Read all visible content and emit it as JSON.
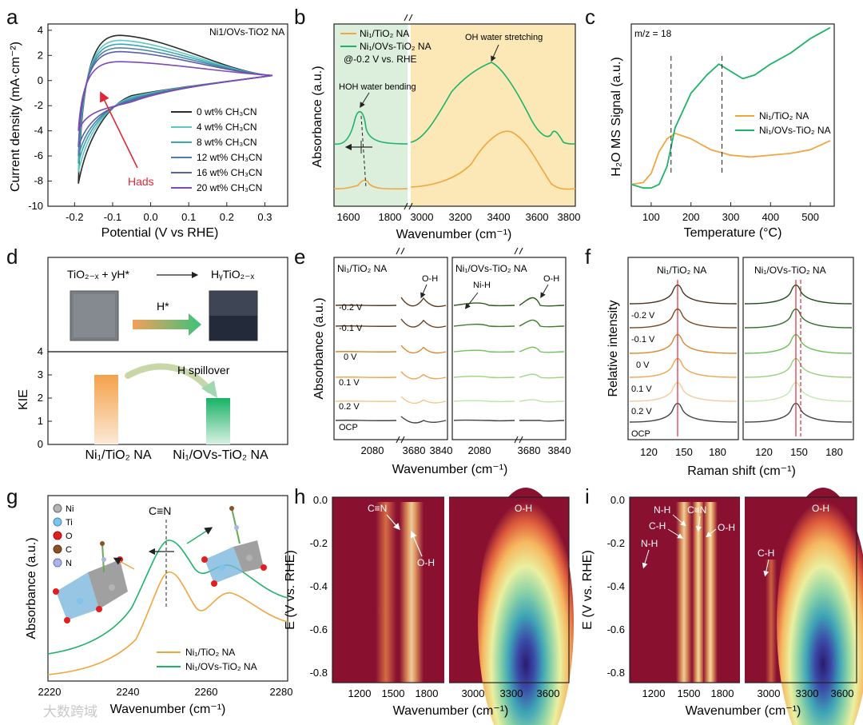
{
  "figure": {
    "panel_letters": [
      "a",
      "b",
      "c",
      "d",
      "e",
      "f",
      "g",
      "h",
      "i"
    ],
    "watermark": "大数跨域"
  },
  "colors": {
    "black": "#222222",
    "orange": "#f2a640",
    "green": "#1db36a",
    "red": "#e0283b",
    "cv": [
      "#2b2b2b",
      "#5fc9bf",
      "#3aa6b4",
      "#4b7fa8",
      "#5a5fa8",
      "#7e48b8"
    ],
    "e_left": [
      "#5a3a1e",
      "#6a4220",
      "#d7882c",
      "#f0a650",
      "#f6c58a",
      "#444444"
    ],
    "e_right": [
      "#2e5e22",
      "#3f7f2a",
      "#6fc25a",
      "#9ad67f",
      "#bde5a8",
      "#444444"
    ],
    "f_left": [
      "#4a3422",
      "#7a4a22",
      "#d9892c",
      "#f0a650",
      "#f8c99b",
      "#444444"
    ],
    "f_right": [
      "#1e4e1e",
      "#2f6f2a",
      "#6cc057",
      "#98d07c",
      "#c5e8b3",
      "#444444"
    ]
  },
  "chart_data": [
    {
      "panel": "a",
      "type": "line",
      "title": "Ni1/OVs-TiO2 NA",
      "xlabel": "Potential (V vs RHE)",
      "ylabel": "Current density (mA·cm⁻²)",
      "xlim": [
        -0.27,
        0.36
      ],
      "ylim": [
        -10,
        4.5
      ],
      "xticks": [
        "-0.2",
        "-0.1",
        "0.0",
        "0.1",
        "0.2",
        "0.3"
      ],
      "yticks": [
        "4",
        "2",
        "0",
        "-2",
        "-4",
        "-6",
        "-8",
        "-10"
      ],
      "annotation": "Hads",
      "series": [
        {
          "name": "0 wt% CH3CN",
          "cathodic_min": -8.2,
          "anodic_peak": 3.6
        },
        {
          "name": "4 wt% CH3CN",
          "cathodic_min": -7.3,
          "anodic_peak": 3.2
        },
        {
          "name": "8 wt% CH3CN",
          "cathodic_min": -6.6,
          "anodic_peak": 2.9
        },
        {
          "name": "12 wt% CH3CN",
          "cathodic_min": -6.0,
          "anodic_peak": 2.6
        },
        {
          "name": "16 wt% CH3CN",
          "cathodic_min": -5.3,
          "anodic_peak": 2.3
        },
        {
          "name": "20 wt% CH3CN",
          "cathodic_min": -4.0,
          "anodic_peak": 1.5
        }
      ],
      "legend_names": [
        "0 wt% CH₃CN",
        "4 wt% CH₃CN",
        "8 wt% CH₃CN",
        "12 wt% CH₃CN",
        "16 wt% CH₃CN",
        "20 wt% CH₃CN"
      ]
    },
    {
      "panel": "b",
      "type": "line",
      "xlabel": "Wavenumber (cm⁻¹)",
      "ylabel": "Absorbance (a.u.)",
      "xticks_left": [
        "1600",
        "1800"
      ],
      "xticks_right": [
        "3000",
        "3200",
        "3400",
        "3600",
        "3800"
      ],
      "legend": [
        "Ni₁/TiO₂ NA",
        "Ni₁/OVs-TiO₂ NA",
        "@-0.2 V vs. RHE"
      ],
      "annotations": [
        "HOH water bending",
        "OH water stretching"
      ],
      "series": [
        {
          "name": "Ni1/TiO2 NA",
          "bending_peak": 1660,
          "stretching_peak": 3480
        },
        {
          "name": "Ni1/OVs-TiO2 NA",
          "bending_peak": 1635,
          "stretching_peak": 3370
        }
      ]
    },
    {
      "panel": "c",
      "type": "line",
      "title": "m/z = 18",
      "xlabel": "Temperature (°C)",
      "ylabel": "H₂O MS Signal (a.u.)",
      "xlim": [
        50,
        560
      ],
      "xticks": [
        "100",
        "200",
        "300",
        "400",
        "500"
      ],
      "legend": [
        "Ni₁/TiO₂ NA",
        "Ni₁/OVs-TiO₂ NA"
      ],
      "series": [
        {
          "name": "Ni1/TiO2 NA",
          "x": [
            50,
            80,
            100,
            120,
            140,
            160,
            200,
            250,
            300,
            350,
            400,
            450,
            500,
            550
          ],
          "y": [
            0.12,
            0.13,
            0.18,
            0.3,
            0.37,
            0.4,
            0.37,
            0.31,
            0.28,
            0.27,
            0.28,
            0.29,
            0.31,
            0.36
          ]
        },
        {
          "name": "Ni1/OVs-TiO2 NA",
          "x": [
            50,
            80,
            100,
            120,
            140,
            160,
            200,
            240,
            270,
            300,
            330,
            360,
            400,
            450,
            500,
            550
          ],
          "y": [
            0.12,
            0.1,
            0.1,
            0.12,
            0.22,
            0.43,
            0.62,
            0.72,
            0.78,
            0.74,
            0.7,
            0.72,
            0.78,
            0.84,
            0.92,
            0.98
          ]
        }
      ],
      "markers": [
        150,
        278
      ]
    },
    {
      "panel": "d",
      "type": "bar",
      "ylabel": "KIE",
      "yticks": [
        "0",
        "1",
        "2",
        "3",
        "4"
      ],
      "ylim": [
        0,
        4
      ],
      "categories": [
        "Ni₁/TiO₂ NA",
        "Ni₁/OVs-TiO₂ NA"
      ],
      "values": [
        3.0,
        2.0
      ],
      "annotations": [
        "H spillover",
        "H*"
      ],
      "reaction_left": "TiO₂₋ₓ + yH*",
      "reaction_right": "HᵧTiO₂₋ₓ"
    },
    {
      "panel": "e",
      "type": "line",
      "xlabel": "Wavenumber (cm⁻¹)",
      "ylabel": "Absorbance (a.u.)",
      "titles": [
        "Ni₁/TiO₂ NA",
        "Ni₁/OVs-TiO₂ NA"
      ],
      "series_labels": [
        "-0.2 V",
        "-0.1 V",
        "0 V",
        "0.1 V",
        "0.2 V",
        "OCP"
      ],
      "xticks": [
        "2080",
        "3680",
        "3840",
        "2080",
        "3680",
        "3840"
      ],
      "annotations": [
        "O-H",
        "Ni-H",
        "O-H"
      ]
    },
    {
      "panel": "f",
      "type": "line",
      "xlabel": "Raman shift (cm⁻¹)",
      "ylabel": "Relative intensity",
      "titles": [
        "Ni₁/TiO₂ NA",
        "Ni₁/OVs-TiO₂ NA"
      ],
      "series_labels": [
        "-0.2 V",
        "-0.1 V",
        "0 V",
        "0.1 V",
        "0.2 V",
        "OCP"
      ],
      "xticks": [
        "120",
        "150",
        "180",
        "120",
        "150",
        "180"
      ],
      "peaks": [
        144,
        147
      ]
    },
    {
      "panel": "g",
      "type": "line",
      "xlabel": "Wavenumber (cm⁻¹)",
      "ylabel": "Absorbance (a.u.)",
      "xlim": [
        2220,
        2280
      ],
      "xticks": [
        "2220",
        "2240",
        "2260",
        "2280"
      ],
      "legend": [
        "Ni₁/TiO₂ NA",
        "Ni₁/OVs-TiO₂ NA"
      ],
      "annotation": "C≡N",
      "atoms": [
        "Ni",
        "Ti",
        "O",
        "C",
        "N"
      ],
      "series": [
        {
          "name": "Ni1/TiO2 NA",
          "peak": 2252
        },
        {
          "name": "Ni1/OVs-TiO2 NA",
          "peak": 2250
        }
      ]
    },
    {
      "panel": "h",
      "type": "heatmap",
      "xlabel": "Wavenumber (cm⁻¹)",
      "ylabel": "E (V vs. RHE)",
      "yticks": [
        "0.0",
        "-0.2",
        "-0.4",
        "-0.6",
        "-0.8"
      ],
      "xticks": [
        "1200",
        "1500",
        "1800",
        "3000",
        "3300",
        "3600"
      ],
      "annotations": [
        "C≡N",
        "O-H",
        "O-H"
      ]
    },
    {
      "panel": "i",
      "type": "heatmap",
      "xlabel": "Wavenumber (cm⁻¹)",
      "ylabel": "E (V vs. RHE)",
      "yticks": [
        "0.0",
        "-0.2",
        "-0.4",
        "-0.6",
        "-0.8"
      ],
      "xticks": [
        "1200",
        "1500",
        "1800",
        "3000",
        "3300",
        "3600"
      ],
      "annotations": [
        "N-H",
        "C≡N",
        "C-H",
        "O-H",
        "N-H",
        "C-H",
        "O-H"
      ]
    }
  ]
}
